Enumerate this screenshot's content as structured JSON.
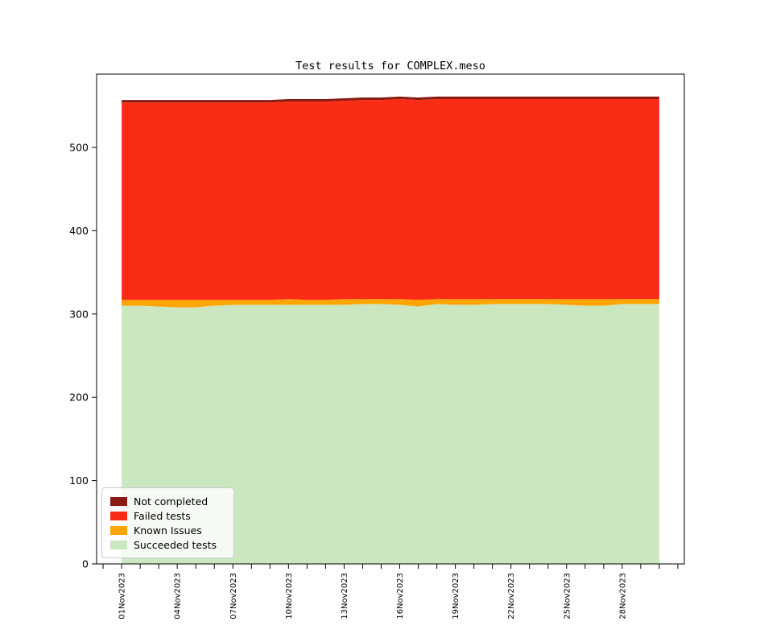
{
  "figure": {
    "background": "#ffffff",
    "frame_color": "#000000"
  },
  "chart_data": {
    "type": "area",
    "stacked": true,
    "title": "Test results for COMPLEX.meso",
    "xlabel": "",
    "ylabel": "",
    "grid": false,
    "ylim": [
      0,
      588
    ],
    "yticks": [
      0,
      100,
      200,
      300,
      400,
      500
    ],
    "x": [
      "01Nov2023",
      "02Nov2023",
      "03Nov2023",
      "04Nov2023",
      "05Nov2023",
      "06Nov2023",
      "07Nov2023",
      "08Nov2023",
      "09Nov2023",
      "10Nov2023",
      "11Nov2023",
      "12Nov2023",
      "13Nov2023",
      "14Nov2023",
      "15Nov2023",
      "16Nov2023",
      "17Nov2023",
      "18Nov2023",
      "19Nov2023",
      "20Nov2023",
      "21Nov2023",
      "22Nov2023",
      "23Nov2023",
      "24Nov2023",
      "25Nov2023",
      "26Nov2023",
      "27Nov2023",
      "28Nov2023",
      "29Nov2023",
      "30Nov2023"
    ],
    "xtick_labels": [
      "01Nov2023",
      "04Nov2023",
      "07Nov2023",
      "10Nov2023",
      "13Nov2023",
      "16Nov2023",
      "19Nov2023",
      "22Nov2023",
      "25Nov2023",
      "28Nov2023"
    ],
    "xtick_label_step": 3,
    "xaxis_margin_days": 1.35,
    "series": [
      {
        "name": "Succeeded tests",
        "color": "#cbe7c0",
        "values": [
          310,
          310,
          309,
          308,
          308,
          310,
          311,
          311,
          311,
          311,
          311,
          311,
          311,
          312,
          312,
          311,
          309,
          312,
          311,
          311,
          312,
          312,
          312,
          312,
          311,
          310,
          310,
          312,
          312,
          312
        ]
      },
      {
        "name": "Known Issues",
        "color": "#ffa503",
        "values": [
          7,
          7,
          8,
          9,
          9,
          7,
          6,
          6,
          6,
          7,
          6,
          6,
          7,
          6,
          6,
          7,
          8,
          6,
          7,
          7,
          6,
          6,
          6,
          6,
          7,
          8,
          8,
          6,
          6,
          6
        ]
      },
      {
        "name": "Failed tests",
        "color": "#fb2c15",
        "values": [
          237,
          237,
          237,
          237,
          237,
          237,
          237,
          237,
          237,
          237,
          238,
          238,
          238,
          239,
          239,
          240,
          240,
          240,
          240,
          240,
          240,
          240,
          240,
          240,
          240,
          240,
          240,
          240,
          240,
          240
        ]
      },
      {
        "name": "Not completed",
        "color": "#8b1b12",
        "values": [
          3,
          3,
          3,
          3,
          3,
          3,
          3,
          3,
          3,
          3,
          3,
          3,
          3,
          3,
          3,
          3,
          3,
          3,
          3,
          3,
          3,
          3,
          3,
          3,
          3,
          3,
          3,
          3,
          3,
          3
        ]
      }
    ],
    "legend": {
      "position": "lower left",
      "entries": [
        "Not completed",
        "Failed tests",
        "Known Issues",
        "Succeeded tests"
      ]
    }
  }
}
